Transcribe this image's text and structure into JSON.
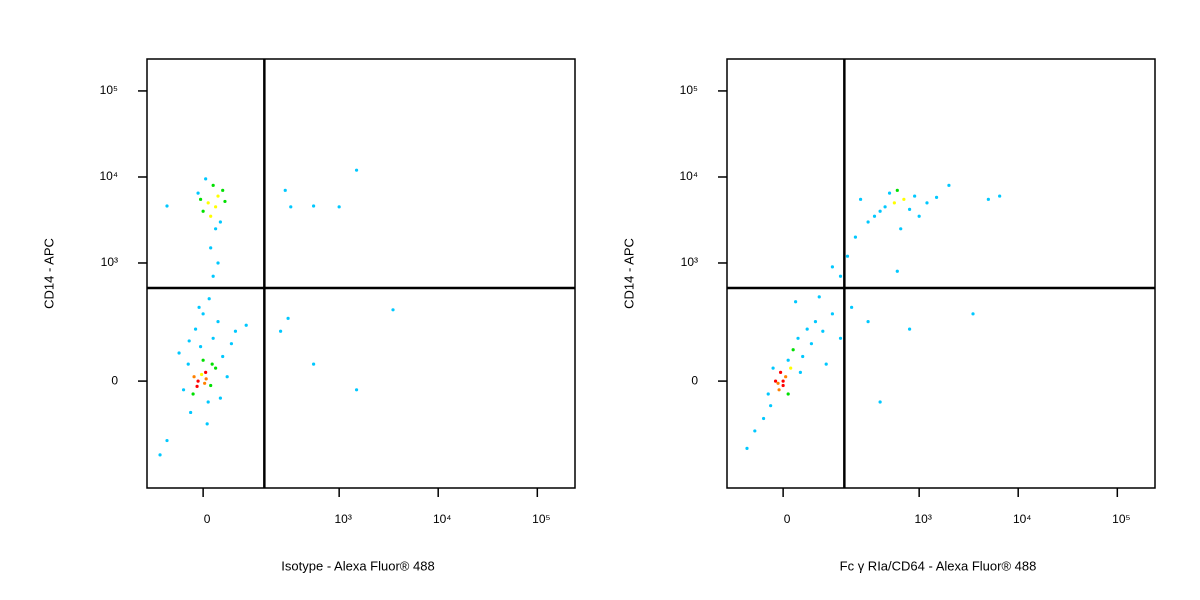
{
  "chart_data": [
    {
      "type": "scatter",
      "x_label": "Isotype - Alexa Fluor® 488",
      "y_label": "CD14 - APC",
      "xscale": "biexponential",
      "yscale": "biexponential",
      "xlim": [
        -145,
        240000
      ],
      "ylim": [
        -740,
        235000
      ],
      "xticks": [
        0,
        {
          "value": 1000,
          "label": "10³"
        },
        {
          "value": 10000,
          "label": "10⁴"
        },
        {
          "value": 100000,
          "label": "10⁵"
        }
      ],
      "yticks": [
        0,
        {
          "value": 1000,
          "label": "10³"
        },
        {
          "value": 10000,
          "label": "10⁴"
        },
        {
          "value": 100000,
          "label": "10⁵"
        }
      ],
      "gate": {
        "x": 166,
        "y": 510
      },
      "x": [
        -10,
        5,
        -20,
        15,
        0,
        -30,
        25,
        10,
        -5,
        20,
        -15,
        30,
        0,
        40,
        -40,
        50,
        -25,
        8,
        -50,
        60,
        35,
        -8,
        12,
        -18,
        3,
        -3,
        6,
        -12,
        18,
        -28,
        70,
        100,
        -80,
        -100,
        300,
        550,
        1500,
        3500,
        250,
        10,
        25,
        -5,
        30,
        15,
        40,
        0,
        20,
        -10,
        35,
        45,
        5,
        25,
        15,
        30,
        20,
        1500,
        280,
        320,
        550,
        1000,
        -80
      ],
      "y": [
        0,
        20,
        -30,
        -10,
        50,
        40,
        30,
        -50,
        90,
        120,
        160,
        200,
        250,
        60,
        -20,
        10,
        -80,
        -120,
        70,
        100,
        -40,
        300,
        380,
        10,
        -5,
        15,
        5,
        -12,
        40,
        110,
        150,
        180,
        -200,
        -300,
        220,
        40,
        -20,
        280,
        150,
        5000,
        4500,
        5500,
        6000,
        3500,
        7000,
        4000,
        8000,
        6500,
        3000,
        5200,
        9500,
        2500,
        1500,
        1000,
        700,
        12000,
        7000,
        4500,
        4600,
        4500,
        4600
      ]
    },
    {
      "type": "scatter",
      "x_label": "Fc γ RIa/CD64 - Alexa Fluor® 488",
      "y_label": "CD14 - APC",
      "xscale": "biexponential",
      "yscale": "biexponential",
      "xlim": [
        -145,
        240000
      ],
      "ylim": [
        -740,
        235000
      ],
      "xticks": [
        0,
        {
          "value": 1000,
          "label": "10³"
        },
        {
          "value": 10000,
          "label": "10⁴"
        },
        {
          "value": 100000,
          "label": "10⁵"
        }
      ],
      "yticks": [
        0,
        {
          "value": 1000,
          "label": "10³"
        },
        {
          "value": 10000,
          "label": "10⁴"
        },
        {
          "value": 100000,
          "label": "10⁵"
        }
      ],
      "gate": {
        "x": 166,
        "y": 510
      },
      "x": [
        -15,
        -5,
        -30,
        0,
        10,
        -25,
        20,
        30,
        50,
        70,
        -40,
        5,
        -10,
        15,
        40,
        60,
        90,
        120,
        -60,
        -80,
        100,
        150,
        200,
        25,
        80,
        -20,
        0,
        -8,
        10,
        35,
        150,
        180,
        220,
        120,
        300,
        400,
        800,
        3500,
        600,
        560,
        450,
        700,
        400,
        900,
        350,
        600,
        1200,
        300,
        500,
        800,
        1500,
        250,
        650,
        1000,
        5000,
        6500,
        2000
      ],
      "y": [
        0,
        20,
        -30,
        -10,
        50,
        -60,
        80,
        120,
        160,
        200,
        -100,
        10,
        -5,
        30,
        60,
        100,
        150,
        250,
        -150,
        -250,
        40,
        120,
        300,
        350,
        400,
        30,
        0,
        -20,
        -30,
        20,
        700,
        1200,
        2000,
        900,
        200,
        -50,
        160,
        250,
        800,
        5000,
        4500,
        5500,
        4000,
        6000,
        3500,
        7000,
        5000,
        3000,
        6500,
        4200,
        5800,
        5500,
        2500,
        3500,
        5500,
        6000,
        8000
      ]
    }
  ]
}
